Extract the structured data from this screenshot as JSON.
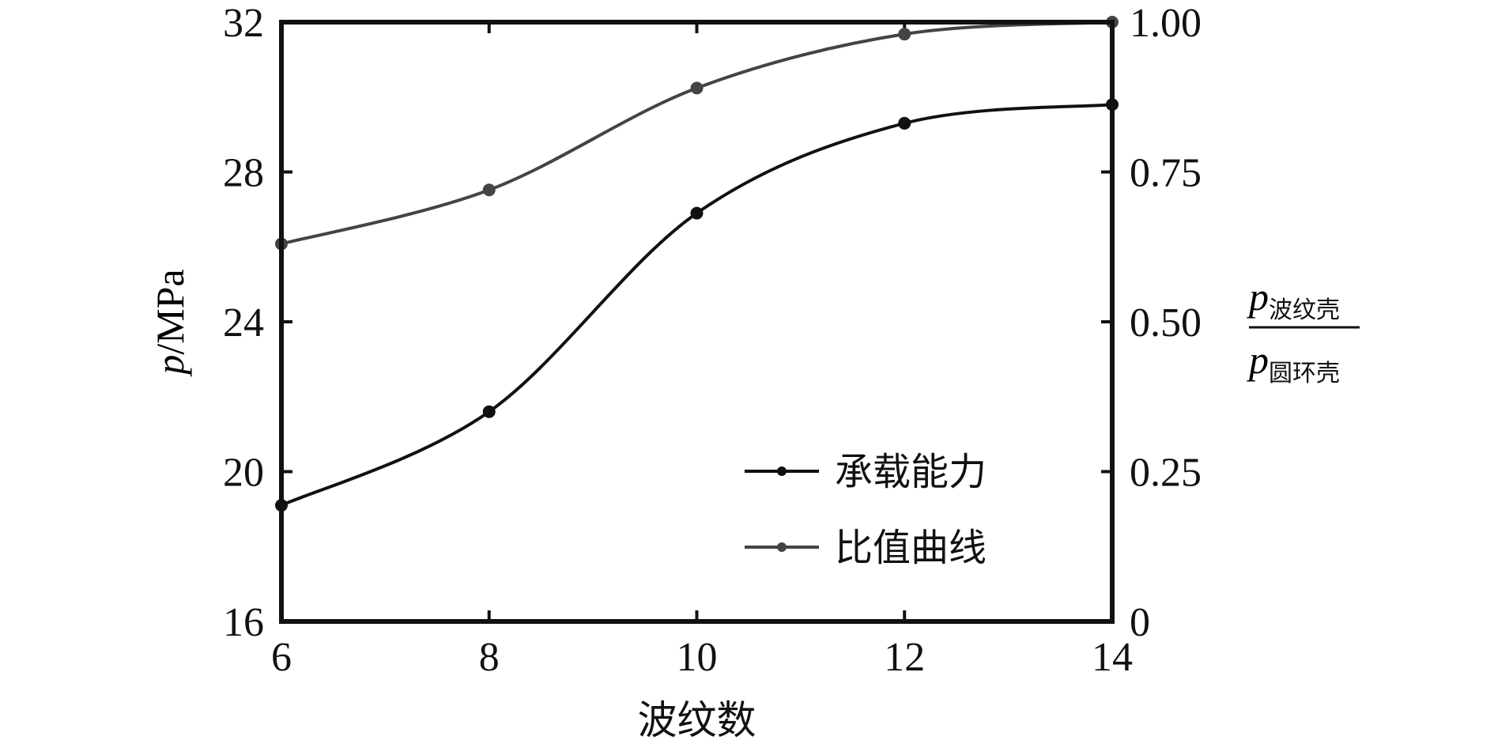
{
  "chart_data": {
    "type": "line",
    "xlabel": "波纹数",
    "x": [
      6,
      8,
      10,
      12,
      14
    ],
    "xlim": [
      6,
      14
    ],
    "xticks": [
      "6",
      "8",
      "10",
      "12",
      "14"
    ],
    "ylabel": {
      "var": "p",
      "unit": "/MPa"
    },
    "ylim": [
      16,
      32
    ],
    "yticks": [
      "16",
      "20",
      "24",
      "28",
      "32"
    ],
    "y2label": {
      "num_var": "p",
      "num_sub": "波纹壳",
      "den_var": "p",
      "den_sub": "圆环壳"
    },
    "y2lim": [
      0,
      1
    ],
    "y2ticks": [
      "0",
      "0.25",
      "0.50",
      "0.75",
      "1.00"
    ],
    "legend_position": "bottom-right",
    "grid": false,
    "series": [
      {
        "name": "承载能力",
        "axis": "left",
        "color": "#111111",
        "values": [
          19.1,
          21.6,
          26.9,
          29.3,
          29.8
        ]
      },
      {
        "name": "比值曲线",
        "axis": "right",
        "color": "#444444",
        "values": [
          0.63,
          0.72,
          0.89,
          0.98,
          1.0
        ]
      }
    ]
  }
}
